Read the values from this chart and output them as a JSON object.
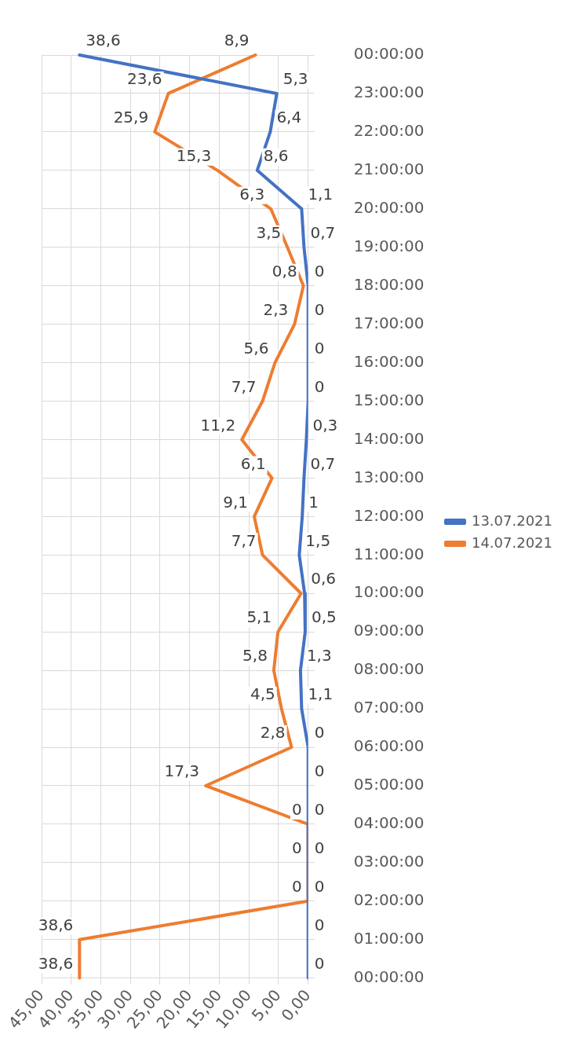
{
  "chart_data": {
    "type": "line",
    "orientation": "horizontal",
    "categories": [
      "00:00:00",
      "23:00:00",
      "22:00:00",
      "21:00:00",
      "20:00:00",
      "19:00:00",
      "18:00:00",
      "17:00:00",
      "16:00:00",
      "15:00:00",
      "14:00:00",
      "13:00:00",
      "12:00:00",
      "11:00:00",
      "10:00:00",
      "09:00:00",
      "08:00:00",
      "07:00:00",
      "06:00:00",
      "05:00:00",
      "04:00:00",
      "03:00:00",
      "02:00:00",
      "01:00:00",
      "00:00:00"
    ],
    "series": [
      {
        "name": "13.07.2021",
        "color": "#4472c4",
        "values": [
          38.6,
          5.3,
          6.4,
          8.6,
          1.1,
          0.7,
          0,
          0,
          0,
          0,
          0.3,
          0.7,
          1,
          1.5,
          0.6,
          0.5,
          1.3,
          1.1,
          0,
          0,
          0,
          0,
          0,
          0,
          0
        ],
        "value_labels": [
          "38,6",
          "5,3",
          "6,4",
          "8,6",
          "1,1",
          "0,7",
          "0",
          "0",
          "0",
          "0",
          "0,3",
          "0,7",
          "1",
          "1,5",
          "0,6",
          "0,5",
          "1,3",
          "1,1",
          "0",
          "0",
          "0",
          "0",
          "0",
          "0",
          "0"
        ]
      },
      {
        "name": "14.07.2021",
        "color": "#ed7d31",
        "values": [
          8.9,
          23.6,
          25.9,
          15.3,
          6.3,
          3.5,
          0.8,
          2.3,
          5.6,
          7.7,
          11.2,
          6.1,
          9.1,
          7.7,
          1.2,
          5.1,
          5.8,
          4.5,
          2.8,
          17.3,
          0,
          0,
          0,
          38.6,
          38.6
        ],
        "value_labels": [
          "8,9",
          "23,6",
          "25,9",
          "15,3",
          "6,3",
          "3,5",
          "0,8",
          "2,3",
          "5,6",
          "7,7",
          "11,2",
          "6,1",
          "9,1",
          "7,7",
          null,
          "5,1",
          "5,8",
          "4,5",
          "2,8",
          "17,3",
          "0",
          "0",
          "0",
          "38,6",
          "38,6"
        ]
      }
    ],
    "xlim": [
      45,
      0
    ],
    "xticks": [
      {
        "value": 45,
        "label": "45,00"
      },
      {
        "value": 40,
        "label": "40,00"
      },
      {
        "value": 35,
        "label": "35,00"
      },
      {
        "value": 30,
        "label": "30,00"
      },
      {
        "value": 25,
        "label": "25,00"
      },
      {
        "value": 20,
        "label": "20,00"
      },
      {
        "value": 15,
        "label": "15,00"
      },
      {
        "value": 10,
        "label": "10,00"
      },
      {
        "value": 5,
        "label": "5,00"
      },
      {
        "value": 0,
        "label": "0,00"
      }
    ],
    "grid": true,
    "legend": "right",
    "marker": "none",
    "line_style": "solid"
  }
}
